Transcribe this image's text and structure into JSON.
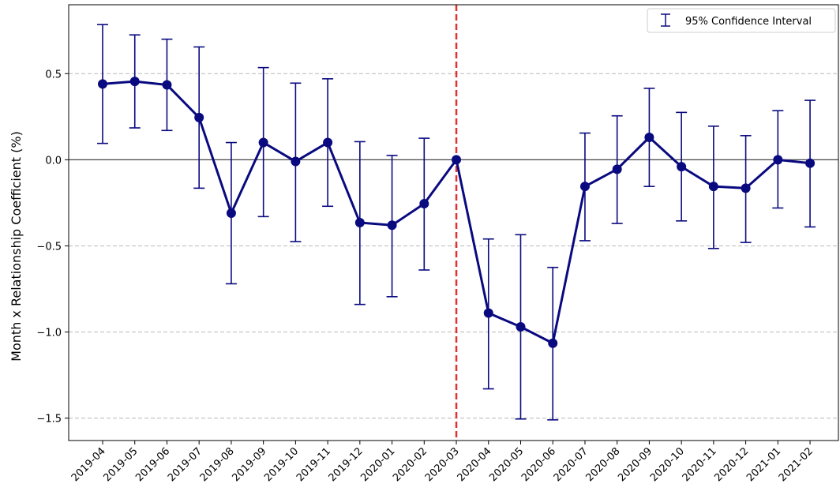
{
  "chart_data": {
    "type": "line",
    "title": "",
    "xlabel": "",
    "ylabel": "Month x Relationship   Coefficient (%)",
    "ylim": [
      -1.63,
      0.9
    ],
    "yticks": [
      -1.5,
      -1.0,
      -0.5,
      0.0,
      0.5
    ],
    "ytick_labels": [
      "−1.5",
      "−1.0",
      "−0.5",
      "0.0",
      "0.5"
    ],
    "grid": "y-dashed",
    "legend": {
      "placement": "top-right",
      "entries": [
        "95% Confidence Interval"
      ]
    },
    "reference_line": {
      "x": "2020-03",
      "style": "dashed",
      "color": "#e03030"
    },
    "zero_line": 0.0,
    "categories": [
      "2019-04",
      "2019-05",
      "2019-06",
      "2019-07",
      "2019-08",
      "2019-09",
      "2019-10",
      "2019-11",
      "2019-12",
      "2020-01",
      "2020-02",
      "2020-03",
      "2020-04",
      "2020-05",
      "2020-06",
      "2020-07",
      "2020-08",
      "2020-09",
      "2020-10",
      "2020-11",
      "2020-12",
      "2021-01",
      "2021-02"
    ],
    "series": [
      {
        "color": "#0a0a80",
        "values": [
          0.44,
          0.455,
          0.435,
          0.245,
          -0.31,
          0.1,
          -0.01,
          0.1,
          -0.365,
          -0.38,
          -0.255,
          0.0,
          -0.89,
          -0.97,
          -1.065,
          -0.155,
          -0.055,
          0.13,
          -0.04,
          -0.155,
          -0.165,
          0.0,
          -0.02
        ],
        "ci_low": [
          0.095,
          0.185,
          0.17,
          -0.165,
          -0.72,
          -0.33,
          -0.475,
          -0.27,
          -0.84,
          -0.795,
          -0.64,
          0.0,
          -1.33,
          -1.505,
          -1.51,
          -0.47,
          -0.37,
          -0.155,
          -0.355,
          -0.515,
          -0.48,
          -0.28,
          -0.39
        ],
        "ci_high": [
          0.785,
          0.725,
          0.7,
          0.655,
          0.1,
          0.535,
          0.445,
          0.47,
          0.105,
          0.025,
          0.125,
          0.0,
          -0.46,
          -0.435,
          -0.625,
          0.155,
          0.255,
          0.415,
          0.275,
          0.195,
          0.14,
          0.285,
          0.345
        ]
      }
    ]
  }
}
